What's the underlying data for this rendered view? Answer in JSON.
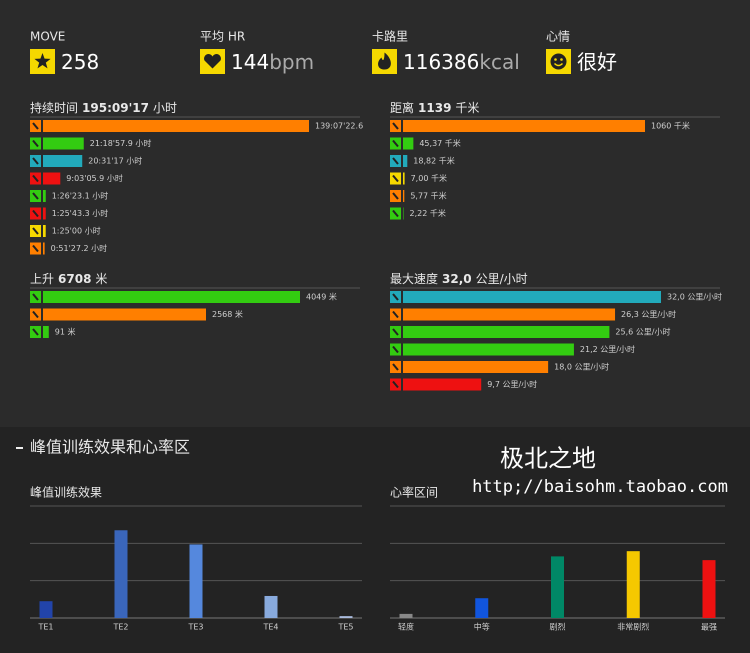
{
  "summary": [
    {
      "label": "MOVE",
      "value": 258
    },
    {
      "label": "平均 HR",
      "value": 144,
      "unit": "bpm"
    },
    {
      "label": "卡路里",
      "value": 116386,
      "unit": "kcal"
    },
    {
      "label": "心情",
      "value": "很好"
    }
  ],
  "panels": [
    {
      "label": "持续时间",
      "total": "195:09'17",
      "unit": "小时",
      "rows": [
        {
          "color": "#ff7f00",
          "value": 139.123,
          "value_label": "139:07'22.6"
        },
        {
          "color": "#33cc11",
          "value": 21.316,
          "value_label": "21:18'57.9 小时"
        },
        {
          "color": "#22aabb",
          "value": 20.521,
          "value_label": "20:31'17 小时"
        },
        {
          "color": "#ee1111",
          "value": 9.052,
          "value_label": "9:03'05.9 小时"
        },
        {
          "color": "#33cc11",
          "value": 1.44,
          "value_label": "1:26'23.1 小时"
        },
        {
          "color": "#ee1111",
          "value": 1.429,
          "value_label": "1:25'43.3 小时"
        },
        {
          "color": "#f5d800",
          "value": 1.417,
          "value_label": "1:25'00 小时"
        },
        {
          "color": "#ff7f00",
          "value": 0.858,
          "value_label": "0:51'27.2 小时"
        }
      ]
    },
    {
      "label": "距离",
      "total": "1139",
      "unit": "千米",
      "rows": [
        {
          "color": "#ff7f00",
          "value": 1060,
          "value_label": "1060 千米"
        },
        {
          "color": "#33cc11",
          "value": 45.37,
          "value_label": "45,37 千米"
        },
        {
          "color": "#22aabb",
          "value": 18.82,
          "value_label": "18,82 千米"
        },
        {
          "color": "#f5d800",
          "value": 7.0,
          "value_label": "7,00 千米"
        },
        {
          "color": "#ff7f00",
          "value": 5.77,
          "value_label": "5,77 千米"
        },
        {
          "color": "#33cc11",
          "value": 2.22,
          "value_label": "2,22 千米"
        }
      ]
    },
    {
      "label": "上升",
      "total": "6708",
      "unit": "米",
      "rows": [
        {
          "color": "#33cc11",
          "value": 4049,
          "value_label": "4049 米"
        },
        {
          "color": "#ff7f00",
          "value": 2568,
          "value_label": "2568 米"
        },
        {
          "color": "#33cc11",
          "value": 91,
          "value_label": "91 米"
        }
      ]
    },
    {
      "label": "最大速度",
      "total": "32,0",
      "unit": "公里/小时",
      "rows": [
        {
          "color": "#22aabb",
          "value": 32.0,
          "value_label": "32,0 公里/小时"
        },
        {
          "color": "#ff7f00",
          "value": 26.3,
          "value_label": "26,3 公里/小时"
        },
        {
          "color": "#33cc11",
          "value": 25.6,
          "value_label": "25,6 公里/小时"
        },
        {
          "color": "#33cc11",
          "value": 21.2,
          "value_label": "21,2 公里/小时"
        },
        {
          "color": "#ff7f00",
          "value": 18.0,
          "value_label": "18,0 公里/小时"
        },
        {
          "color": "#ee1111",
          "value": 9.7,
          "value_label": "9,7 公里/小时"
        }
      ]
    }
  ],
  "section_title": "峰值训练效果和心率区",
  "charts": [
    {
      "title": "峰值训练效果",
      "ylim": [
        0,
        3
      ],
      "grid": [
        1,
        2,
        3
      ],
      "categories": [
        "TE1",
        "TE2",
        "TE3",
        "TE4",
        "TE5"
      ],
      "colors": [
        "#2244aa",
        "#3a66bb",
        "#5588dd",
        "#88aadd",
        "#aabbdd"
      ],
      "values": [
        0.45,
        2.35,
        1.97,
        0.59,
        0.05
      ]
    },
    {
      "title": "心率区间",
      "ylim": [
        0,
        3
      ],
      "grid": [
        1,
        2,
        3
      ],
      "categories": [
        "轻度",
        "中等",
        "剧烈",
        "非常剧烈",
        "最强"
      ],
      "colors": [
        "#888888",
        "#1155dd",
        "#008866",
        "#f5c800",
        "#ee1111"
      ],
      "values": [
        0.11,
        0.53,
        1.65,
        1.79,
        1.55
      ]
    }
  ],
  "watermark": {
    "line1": "极北之地",
    "line2": "http;//baisohm.taobao.com"
  }
}
